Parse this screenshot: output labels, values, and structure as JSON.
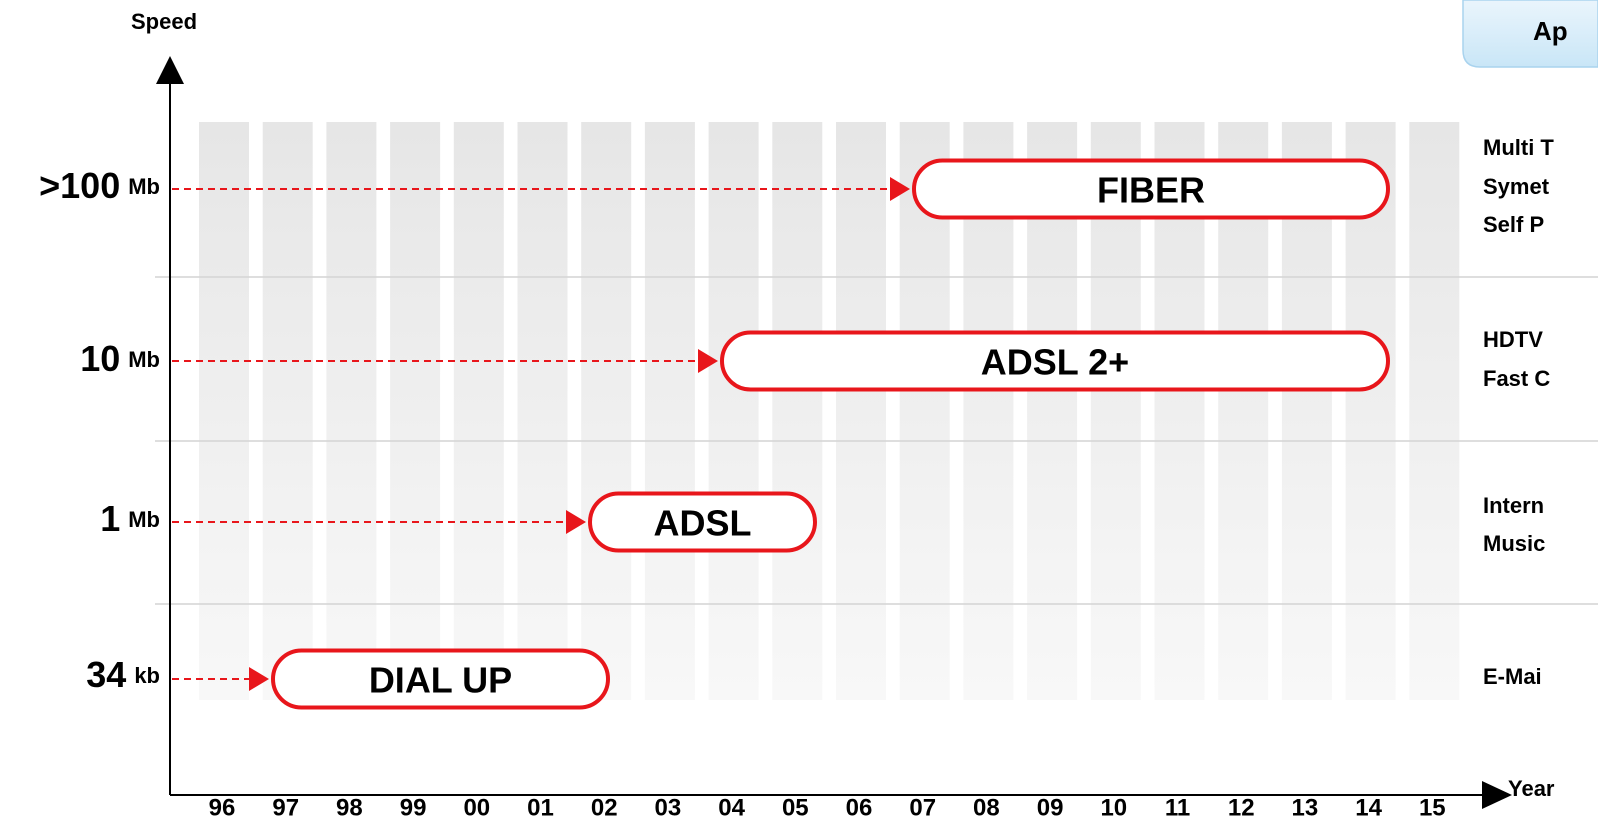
{
  "axes": {
    "y_label": "Speed",
    "x_label": "Year"
  },
  "years": [
    "96",
    "97",
    "98",
    "99",
    "00",
    "01",
    "02",
    "03",
    "04",
    "05",
    "06",
    "07",
    "08",
    "09",
    "10",
    "11",
    "12",
    "13",
    "14",
    "15"
  ],
  "speeds": [
    {
      "value": ">100",
      "unit": "Mb"
    },
    {
      "value": "10",
      "unit": "Mb"
    },
    {
      "value": "1",
      "unit": "Mb"
    },
    {
      "value": "34",
      "unit": "kb"
    }
  ],
  "technologies": [
    "FIBER",
    "ADSL 2+",
    "ADSL",
    "DIAL UP"
  ],
  "applications": {
    "header": "Ap",
    "groups": [
      [
        "Multi T",
        "Symet",
        "Self P"
      ],
      [
        "HDTV",
        "Fast C"
      ],
      [
        "Intern",
        "Music"
      ],
      [
        "E-Mai"
      ]
    ]
  }
}
